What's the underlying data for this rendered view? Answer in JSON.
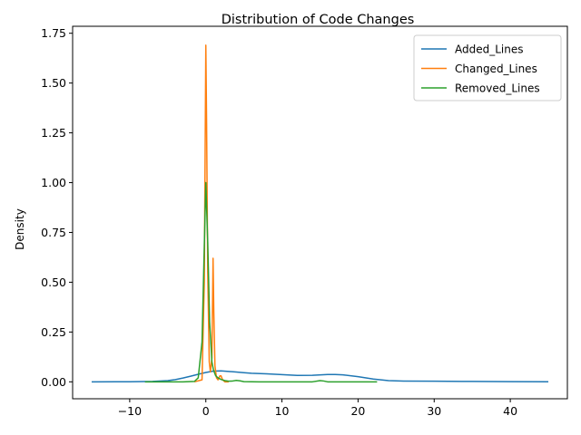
{
  "chart_data": {
    "type": "line",
    "title": "Distribution of Code Changes",
    "xlabel": "",
    "ylabel": "Density",
    "xlim": [
      -17.5,
      47.5
    ],
    "ylim": [
      -0.085,
      1.785
    ],
    "xticks": [
      -10,
      0,
      10,
      20,
      30,
      40
    ],
    "xtick_labels": [
      "−10",
      "0",
      "10",
      "20",
      "30",
      "40"
    ],
    "yticks": [
      0.0,
      0.25,
      0.5,
      0.75,
      1.0,
      1.25,
      1.5,
      1.75
    ],
    "ytick_labels": [
      "0.00",
      "0.25",
      "0.50",
      "0.75",
      "1.00",
      "1.25",
      "1.50",
      "1.75"
    ],
    "grid": false,
    "legend_position": "upper right",
    "series": [
      {
        "name": "Added_Lines",
        "color": "#1f77b4",
        "x": [
          -15,
          -10,
          -7,
          -5,
          -4,
          -3,
          -2,
          -1,
          0,
          1,
          2,
          3,
          4,
          5,
          6,
          8,
          10,
          12,
          14,
          16,
          17,
          18,
          20,
          22,
          24,
          26,
          30,
          35,
          40,
          45
        ],
        "y": [
          0.0,
          0.0003,
          0.002,
          0.006,
          0.011,
          0.019,
          0.028,
          0.038,
          0.047,
          0.054,
          0.055,
          0.052,
          0.049,
          0.046,
          0.043,
          0.04,
          0.036,
          0.032,
          0.033,
          0.037,
          0.037,
          0.035,
          0.026,
          0.014,
          0.006,
          0.004,
          0.003,
          0.002,
          0.001,
          0.0001
        ]
      },
      {
        "name": "Changed_Lines",
        "color": "#ff7f0e",
        "x": [
          -1.5,
          -0.5,
          -0.2,
          -0.05,
          0.0,
          0.1,
          0.25,
          0.45,
          0.6,
          0.8,
          0.95,
          1.05,
          1.2,
          1.4,
          1.6,
          1.85,
          2.0,
          2.2,
          2.5,
          3.0
        ],
        "y": [
          0.0,
          0.01,
          0.5,
          1.4,
          1.69,
          1.3,
          0.55,
          0.1,
          0.05,
          0.12,
          0.62,
          0.35,
          0.08,
          0.02,
          0.01,
          0.03,
          0.03,
          0.01,
          0.0,
          0.0
        ]
      },
      {
        "name": "Removed_Lines",
        "color": "#2ca02c",
        "x": [
          -8,
          -3,
          -1.5,
          -1.0,
          -0.5,
          -0.25,
          0.0,
          0.25,
          0.5,
          0.8,
          1.0,
          1.3,
          1.6,
          2.0,
          2.5,
          3.0,
          3.5,
          4.0,
          4.5,
          5.0,
          7.0,
          10,
          14,
          15.0,
          15.5,
          16,
          18,
          22.5
        ],
        "y": [
          0.0,
          0.0,
          0.002,
          0.02,
          0.2,
          0.6,
          1.0,
          0.7,
          0.3,
          0.1,
          0.06,
          0.03,
          0.02,
          0.012,
          0.006,
          0.003,
          0.004,
          0.007,
          0.005,
          0.001,
          0.0,
          0.0,
          0.0,
          0.006,
          0.004,
          0.0,
          0.0,
          0.0
        ]
      }
    ]
  }
}
